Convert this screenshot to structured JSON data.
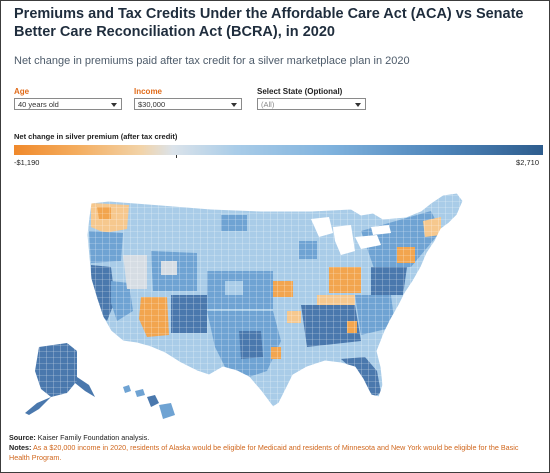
{
  "title": "Premiums and Tax Credits Under the Affordable Care Act (ACA) vs Senate Better Care Reconciliation Act (BCRA), in 2020",
  "subtitle": "Net change in premiums paid after tax credit for a silver marketplace plan in 2020",
  "filters": {
    "age": {
      "label": "Age",
      "value": "40 years old"
    },
    "income": {
      "label": "Income",
      "value": "$30,000"
    },
    "state": {
      "label": "Select State (Optional)",
      "value": "(All)"
    }
  },
  "legend": {
    "title": "Net change in silver premium (after tax credit)",
    "min": "-$1,190",
    "max": "$2,710",
    "colors": [
      "#f0892b",
      "#f4ad5f",
      "#f2d3a8",
      "#dbe3ea",
      "#a9cce8",
      "#7fb2dd",
      "#4f86bb",
      "#2e5d8e"
    ]
  },
  "map": {
    "colors": {
      "orange": "#f2a54f",
      "light_orange": "#f6c88e",
      "grey": "#d6dde4",
      "light_blue": "#a9cce8",
      "mid_blue": "#6fa3d3",
      "dark_blue": "#4a78ad",
      "border": "#ffffff"
    }
  },
  "source": {
    "label": "Source:",
    "text": "Kaiser Family Foundation analysis."
  },
  "notes": {
    "label": "Notes:",
    "text": "As a $20,000 income in 2020, residents of Alaska would be eligible for Medicaid and residents of Minnesota and New York would be eligible for the Basic Health Program."
  }
}
